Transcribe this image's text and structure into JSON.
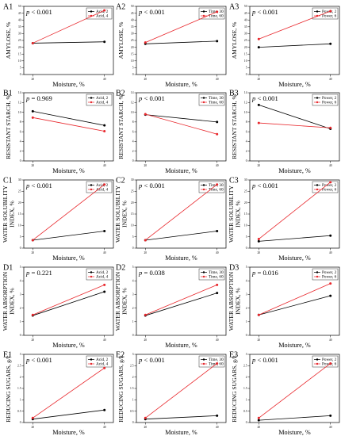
{
  "figure": {
    "x_categories": [
      "20",
      "40"
    ],
    "x_axis_label": "Moisture, %",
    "series_colors": [
      "#000000",
      "#e8262b"
    ]
  },
  "chart_data": [
    {
      "panel": "A1",
      "type": "line",
      "ylabel": "AMYLOSE, %",
      "pvalue": "0.001",
      "p_op": "<",
      "ylim": [
        0,
        50
      ],
      "yticks": [
        0,
        5,
        10,
        15,
        20,
        25,
        30,
        35,
        40,
        45,
        50
      ],
      "show_ylabel_line2": false,
      "x": [
        "20",
        "40"
      ],
      "xlabel": "Moisture, %",
      "series": [
        {
          "name": "Acid, 2",
          "values": [
            23,
            24
          ]
        },
        {
          "name": "Acid, 4",
          "values": [
            23,
            47
          ]
        }
      ]
    },
    {
      "panel": "A2",
      "type": "line",
      "ylabel": "AMYLOSE, %",
      "pvalue": "0.001",
      "p_op": "<",
      "ylim": [
        0,
        50
      ],
      "yticks": [
        0,
        5,
        10,
        15,
        20,
        25,
        30,
        35,
        40,
        45,
        50
      ],
      "x": [
        "20",
        "40"
      ],
      "xlabel": "Moisture, %",
      "series": [
        {
          "name": "Time, 30",
          "values": [
            22.5,
            24.5
          ]
        },
        {
          "name": "Time, 60",
          "values": [
            23.5,
            46
          ]
        }
      ]
    },
    {
      "panel": "A3",
      "type": "line",
      "ylabel": "AMYLOSE, %",
      "pvalue": "0.001",
      "p_op": "<",
      "ylim": [
        0,
        50
      ],
      "yticks": [
        0,
        5,
        10,
        15,
        20,
        25,
        30,
        35,
        40,
        45,
        50
      ],
      "x": [
        "20",
        "40"
      ],
      "xlabel": "Moisture, %",
      "series": [
        {
          "name": "Power, 2",
          "values": [
            20,
            22.5
          ]
        },
        {
          "name": "Power, 6",
          "values": [
            26,
            46.5
          ]
        }
      ]
    },
    {
      "panel": "B1",
      "type": "line",
      "ylabel": "RESISTANT STARCH, %",
      "pvalue": "0.969",
      "p_op": "=",
      "ylim": [
        0,
        14
      ],
      "yticks": [
        0,
        2,
        4,
        6,
        8,
        10,
        12,
        14
      ],
      "x": [
        "20",
        "40"
      ],
      "xlabel": "Moisture, %",
      "series": [
        {
          "name": "Acid, 2",
          "values": [
            10.2,
            7.3
          ]
        },
        {
          "name": "Acid, 4",
          "values": [
            8.9,
            6.1
          ]
        }
      ]
    },
    {
      "panel": "B2",
      "type": "line",
      "ylabel": "RESISTANT STARCH, %",
      "pvalue": "0.001",
      "p_op": "<",
      "ylim": [
        0,
        14
      ],
      "yticks": [
        0,
        2,
        4,
        6,
        8,
        10,
        12,
        14
      ],
      "x": [
        "20",
        "40"
      ],
      "xlabel": "Moisture, %",
      "series": [
        {
          "name": "Time, 30",
          "values": [
            9.5,
            8
          ]
        },
        {
          "name": "Time, 60",
          "values": [
            9.6,
            5.5
          ]
        }
      ]
    },
    {
      "panel": "B3",
      "type": "line",
      "ylabel": "RESISTANT STARCH, %",
      "pvalue": "0.001",
      "p_op": "<",
      "ylim": [
        0,
        14
      ],
      "yticks": [
        0,
        2,
        4,
        6,
        8,
        10,
        12,
        14
      ],
      "x": [
        "20",
        "40"
      ],
      "xlabel": "Moisture, %",
      "series": [
        {
          "name": "Power, 2",
          "values": [
            11.5,
            6.6
          ]
        },
        {
          "name": "Power, 6",
          "values": [
            7.8,
            6.8
          ]
        }
      ]
    },
    {
      "panel": "C1",
      "type": "line",
      "ylabel": "WATER SOLUBILITY INDEX, %",
      "pvalue": "0.001",
      "p_op": "<",
      "ylim": [
        0,
        30
      ],
      "yticks": [
        0,
        5,
        10,
        15,
        20,
        25,
        30
      ],
      "x": [
        "20",
        "40"
      ],
      "xlabel": "Moisture, %",
      "series": [
        {
          "name": "Acid, 2",
          "values": [
            3.5,
            7.5
          ]
        },
        {
          "name": "Acid, 4",
          "values": [
            3.5,
            28
          ]
        }
      ]
    },
    {
      "panel": "C2",
      "type": "line",
      "ylabel": "WATER SOLUBILITY INDEX, %",
      "pvalue": "0.001",
      "p_op": "<",
      "ylim": [
        0,
        30
      ],
      "yticks": [
        0,
        5,
        10,
        15,
        20,
        25,
        30
      ],
      "x": [
        "20",
        "40"
      ],
      "xlabel": "Moisture, %",
      "series": [
        {
          "name": "Time, 30",
          "values": [
            3.5,
            7.5
          ]
        },
        {
          "name": "Time, 60",
          "values": [
            3.5,
            28
          ]
        }
      ]
    },
    {
      "panel": "C3",
      "type": "line",
      "ylabel": "WATER SOLUBILITY INDEX, %",
      "pvalue": "0.001",
      "p_op": "<",
      "ylim": [
        0,
        30
      ],
      "yticks": [
        0,
        5,
        10,
        15,
        20,
        25,
        30
      ],
      "x": [
        "20",
        "40"
      ],
      "xlabel": "Moisture, %",
      "series": [
        {
          "name": "Power, 2",
          "values": [
            3,
            5.5
          ]
        },
        {
          "name": "Power, 6",
          "values": [
            4,
            29
          ]
        }
      ]
    },
    {
      "panel": "D1",
      "type": "line",
      "ylabel": "WATER ABSORPTION INDEX, %",
      "pvalue": "0.221",
      "p_op": "=",
      "ylim": [
        0,
        5
      ],
      "yticks": [
        0,
        1,
        2,
        3,
        4,
        5
      ],
      "x": [
        "20",
        "40"
      ],
      "xlabel": "Moisture, %",
      "series": [
        {
          "name": "Acid, 2",
          "values": [
            1.45,
            3.2
          ]
        },
        {
          "name": "Acid, 4",
          "values": [
            1.5,
            3.7
          ]
        }
      ]
    },
    {
      "panel": "D2",
      "type": "line",
      "ylabel": "WATER ABSORPTION INDEX, %",
      "pvalue": "0.038",
      "p_op": "=",
      "ylim": [
        0,
        5
      ],
      "yticks": [
        0,
        1,
        2,
        3,
        4,
        5
      ],
      "x": [
        "20",
        "40"
      ],
      "xlabel": "Moisture, %",
      "series": [
        {
          "name": "Time, 30",
          "values": [
            1.45,
            3.1
          ]
        },
        {
          "name": "Time, 60",
          "values": [
            1.5,
            3.7
          ]
        }
      ]
    },
    {
      "panel": "D3",
      "type": "line",
      "ylabel": "WATER ABSORPTION INDEX, %",
      "pvalue": "0.016",
      "p_op": "=",
      "ylim": [
        0,
        5
      ],
      "yticks": [
        0,
        1,
        2,
        3,
        4,
        5
      ],
      "x": [
        "20",
        "40"
      ],
      "xlabel": "Moisture, %",
      "series": [
        {
          "name": "Power, 2",
          "values": [
            1.5,
            2.9
          ]
        },
        {
          "name": "Power, 6",
          "values": [
            1.5,
            3.8
          ]
        }
      ]
    },
    {
      "panel": "E1",
      "type": "line",
      "ylabel": "REDUCING SUGARS, g/L",
      "pvalue": "0.001",
      "p_op": "<",
      "ylim": [
        0,
        3
      ],
      "yticks": [
        0,
        0.5,
        1,
        1.5,
        2,
        2.5,
        3
      ],
      "x": [
        "20",
        "40"
      ],
      "xlabel": "Moisture, %",
      "series": [
        {
          "name": "Acid, 2",
          "values": [
            0.15,
            0.55
          ]
        },
        {
          "name": "Acid, 4",
          "values": [
            0.2,
            2.4
          ]
        }
      ]
    },
    {
      "panel": "E2",
      "type": "line",
      "ylabel": "REDUCING SUGARS, g/L",
      "pvalue": "0.001",
      "p_op": "<",
      "ylim": [
        0,
        3
      ],
      "yticks": [
        0,
        0.5,
        1,
        1.5,
        2,
        2.5,
        3
      ],
      "x": [
        "20",
        "40"
      ],
      "xlabel": "Moisture, %",
      "series": [
        {
          "name": "Time, 30",
          "values": [
            0.15,
            0.3
          ]
        },
        {
          "name": "Time, 60",
          "values": [
            0.2,
            2.6
          ]
        }
      ]
    },
    {
      "panel": "E3",
      "type": "line",
      "ylabel": "REDUCING SUGARS, g/L",
      "pvalue": "0.001",
      "p_op": "<",
      "ylim": [
        0,
        3
      ],
      "yticks": [
        0,
        0.5,
        1,
        1.5,
        2,
        2.5,
        3
      ],
      "x": [
        "20",
        "40"
      ],
      "xlabel": "Moisture, %",
      "series": [
        {
          "name": "Power, 2",
          "values": [
            0.1,
            0.3
          ]
        },
        {
          "name": "Power, 6",
          "values": [
            0.2,
            2.6
          ]
        }
      ]
    }
  ]
}
